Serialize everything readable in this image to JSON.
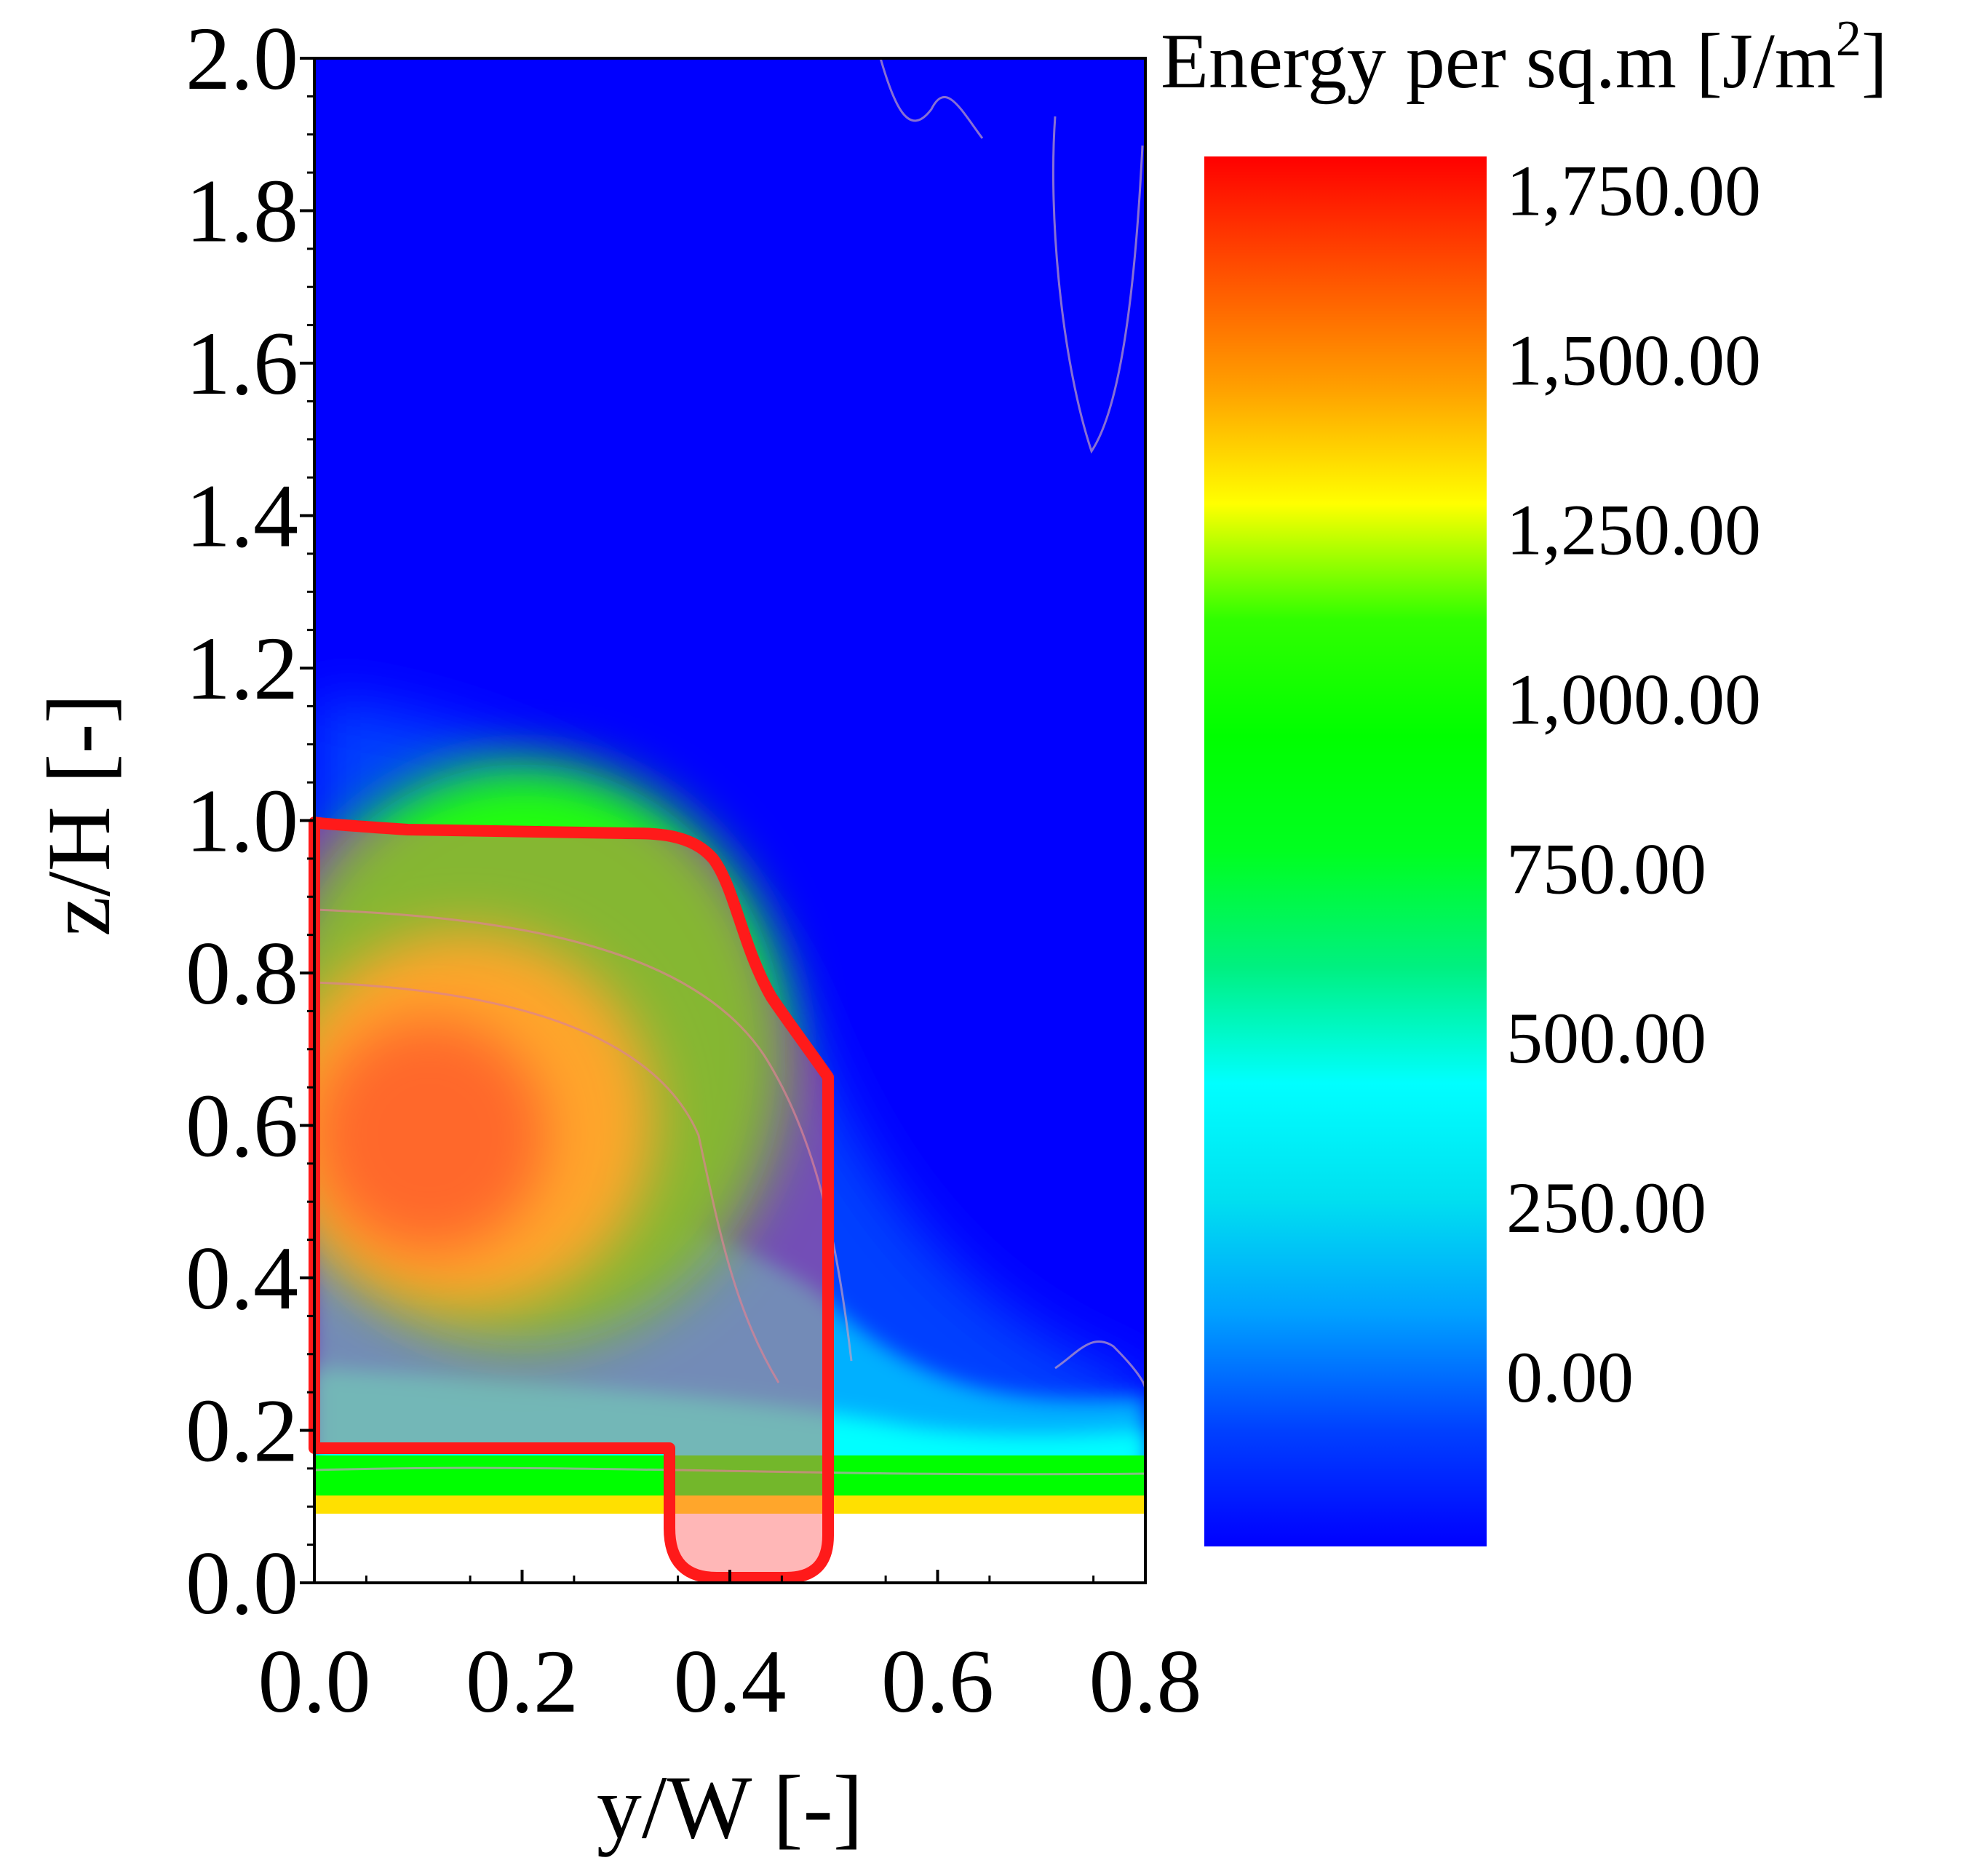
{
  "chart_data": {
    "type": "heatmap",
    "subtype": "filled contour plot",
    "xlabel": "y/W [-]",
    "ylabel": "z/H [-]",
    "xlim": [
      0.0,
      0.8
    ],
    "ylim": [
      0.0,
      2.0
    ],
    "x_ticks": [
      "0.0",
      "0.2",
      "0.4",
      "0.6",
      "0.8"
    ],
    "x_tick_values": [
      0.0,
      0.2,
      0.4,
      0.6,
      0.8
    ],
    "y_ticks": [
      "0.0",
      "0.2",
      "0.4",
      "0.6",
      "0.8",
      "1.0",
      "1.2",
      "1.4",
      "1.6",
      "1.8",
      "2.0"
    ],
    "y_tick_values": [
      0.0,
      0.2,
      0.4,
      0.6,
      0.8,
      1.0,
      1.2,
      1.4,
      1.6,
      1.8,
      2.0
    ],
    "colorbar": {
      "title": "Energy per sq.m [J/m",
      "title_sup": "2",
      "title_end": "]",
      "labels": [
        "1,750.00",
        "1,500.00",
        "1,250.00",
        "1,000.00",
        "750.00",
        "500.00",
        "250.00",
        "0.00"
      ],
      "label_values": [
        1750,
        1500,
        1250,
        1000,
        750,
        500,
        250,
        0
      ],
      "min_value": -250,
      "max_value": 1800,
      "colors": [
        "#0000ff",
        "#0040ff",
        "#00a0ff",
        "#00e0f0",
        "#00ffff",
        "#00f080",
        "#00ff20",
        "#00ff00",
        "#30ff00",
        "#ffff00",
        "#ffa000",
        "#ff5000",
        "#ff0000"
      ]
    },
    "field": {
      "background_value": -200,
      "hotspot": {
        "y": 0.1,
        "z": 0.55,
        "value": 1600
      },
      "ground_band": {
        "z_from": 0.09,
        "z_to": 0.17,
        "value": 1150
      }
    },
    "highlight_region": {
      "description": "red outlined overlay region",
      "outline_color": "#ff1a1a",
      "fill_color": "#ff6060"
    }
  }
}
